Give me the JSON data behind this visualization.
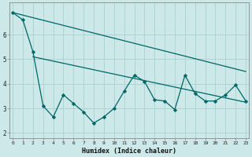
{
  "xlabel": "Humidex (Indice chaleur)",
  "background_color": "#cce8e8",
  "grid_color": "#aed4d4",
  "line_color": "#006666",
  "x_data": [
    0,
    1,
    2,
    3,
    4,
    5,
    6,
    7,
    8,
    9,
    10,
    11,
    12,
    13,
    14,
    15,
    16,
    17,
    18,
    19,
    20,
    21,
    22,
    23
  ],
  "y_main": [
    6.9,
    6.6,
    5.3,
    3.1,
    2.65,
    3.55,
    3.2,
    2.85,
    2.4,
    2.65,
    3.0,
    3.7,
    4.35,
    4.1,
    3.35,
    3.3,
    2.95,
    4.35,
    3.6,
    3.3,
    3.3,
    3.55,
    3.95,
    3.3
  ],
  "trend1_x": [
    0,
    23
  ],
  "trend1_y": [
    6.9,
    4.5
  ],
  "trend2_x": [
    2,
    23
  ],
  "trend2_y": [
    5.1,
    3.25
  ],
  "ylim": [
    1.8,
    7.3
  ],
  "xlim": [
    -0.3,
    23.3
  ],
  "yticks": [
    2,
    3,
    4,
    5,
    6
  ],
  "xticks": [
    0,
    1,
    2,
    3,
    4,
    5,
    6,
    7,
    8,
    9,
    10,
    11,
    12,
    13,
    14,
    15,
    16,
    17,
    18,
    19,
    20,
    21,
    22,
    23
  ]
}
